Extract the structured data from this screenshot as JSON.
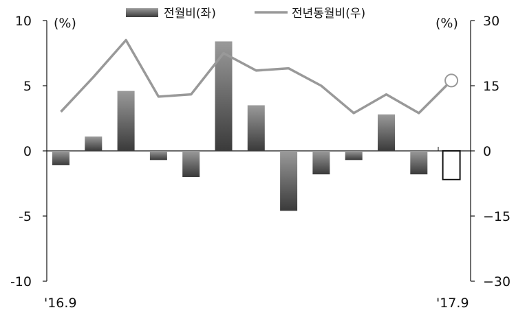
{
  "chart_data": {
    "type": "bar+line",
    "x_labels": [
      "'16.9",
      "'17.9"
    ],
    "left_axis": {
      "unit": "(%)",
      "ticks": [
        10,
        5,
        0,
        -5,
        -10
      ],
      "tick_labels": [
        "10",
        "5",
        "0",
        "-5",
        "-10"
      ],
      "range": [
        -10,
        10
      ]
    },
    "right_axis": {
      "unit": "(%)",
      "ticks": [
        30,
        15,
        0,
        -15,
        -30
      ],
      "tick_labels": [
        "30",
        "15",
        "0",
        "−15",
        "−30"
      ],
      "range": [
        -30,
        30
      ]
    },
    "legend": {
      "placement": "top-center"
    },
    "series": [
      {
        "name": "전월비(좌)",
        "type": "bar",
        "axis": "left",
        "values": [
          -1.1,
          1.1,
          4.6,
          -0.7,
          -2.0,
          8.4,
          3.5,
          -4.6,
          -1.8,
          -0.7,
          2.8,
          -1.8,
          -2.2
        ],
        "last_bar_style": "outlined"
      },
      {
        "name": "전년동월비(우)",
        "type": "line",
        "axis": "right",
        "values": [
          9,
          17,
          25.5,
          12.5,
          13,
          22.5,
          18.5,
          19,
          15,
          8.7,
          13,
          8.7,
          16.2
        ],
        "last_point_marker": "open-circle"
      }
    ],
    "colors": {
      "bar_top": "#9a9a9a",
      "bar_bottom": "#3a3a3a",
      "line": "#999999",
      "axis": "#111111"
    }
  }
}
